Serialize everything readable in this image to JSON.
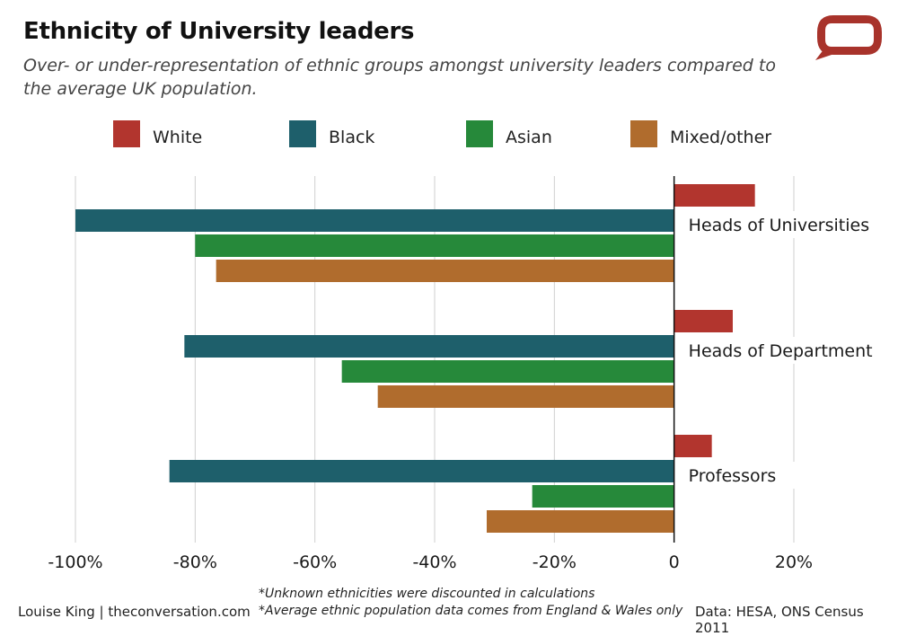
{
  "header": {
    "title": "Ethnicity of University leaders",
    "subtitle": "Over- or under-representation of ethnic groups amongst university leaders compared to the average UK population."
  },
  "logo": {
    "icon": "conversation-speech-bubble-icon",
    "color": "#a8332b"
  },
  "chart_data": {
    "type": "bar",
    "orientation": "horizontal",
    "categories": [
      "Heads of Universities",
      "Heads of Department",
      "Professors"
    ],
    "series": [
      {
        "name": "White",
        "color": "#b2352e",
        "values": [
          13.5,
          9.8,
          6.3
        ]
      },
      {
        "name": "Black",
        "color": "#1e5f6b",
        "values": [
          -100,
          -81.8,
          -84.3
        ]
      },
      {
        "name": "Asian",
        "color": "#26893a",
        "values": [
          -80,
          -55.5,
          -23.7
        ]
      },
      {
        "name": "Mixed/other",
        "color": "#b06c2d",
        "values": [
          -76.5,
          -49.5,
          -31.3
        ]
      }
    ],
    "xlim": [
      -100,
      20
    ],
    "xticks": [
      -100,
      -80,
      -60,
      -40,
      -20,
      0,
      20
    ],
    "xtick_labels": [
      "-100%",
      "-80%",
      "-60%",
      "-40%",
      "-20%",
      "0",
      "20%"
    ],
    "grid": "vertical",
    "legend_position": "top"
  },
  "footer": {
    "credit": "Louise King | theconversation.com",
    "note1": "*Unknown ethnicities were discounted in calculations",
    "note2": "*Average ethnic population data comes from England & Wales only",
    "source": "Data: HESA, ONS Census 2011"
  }
}
